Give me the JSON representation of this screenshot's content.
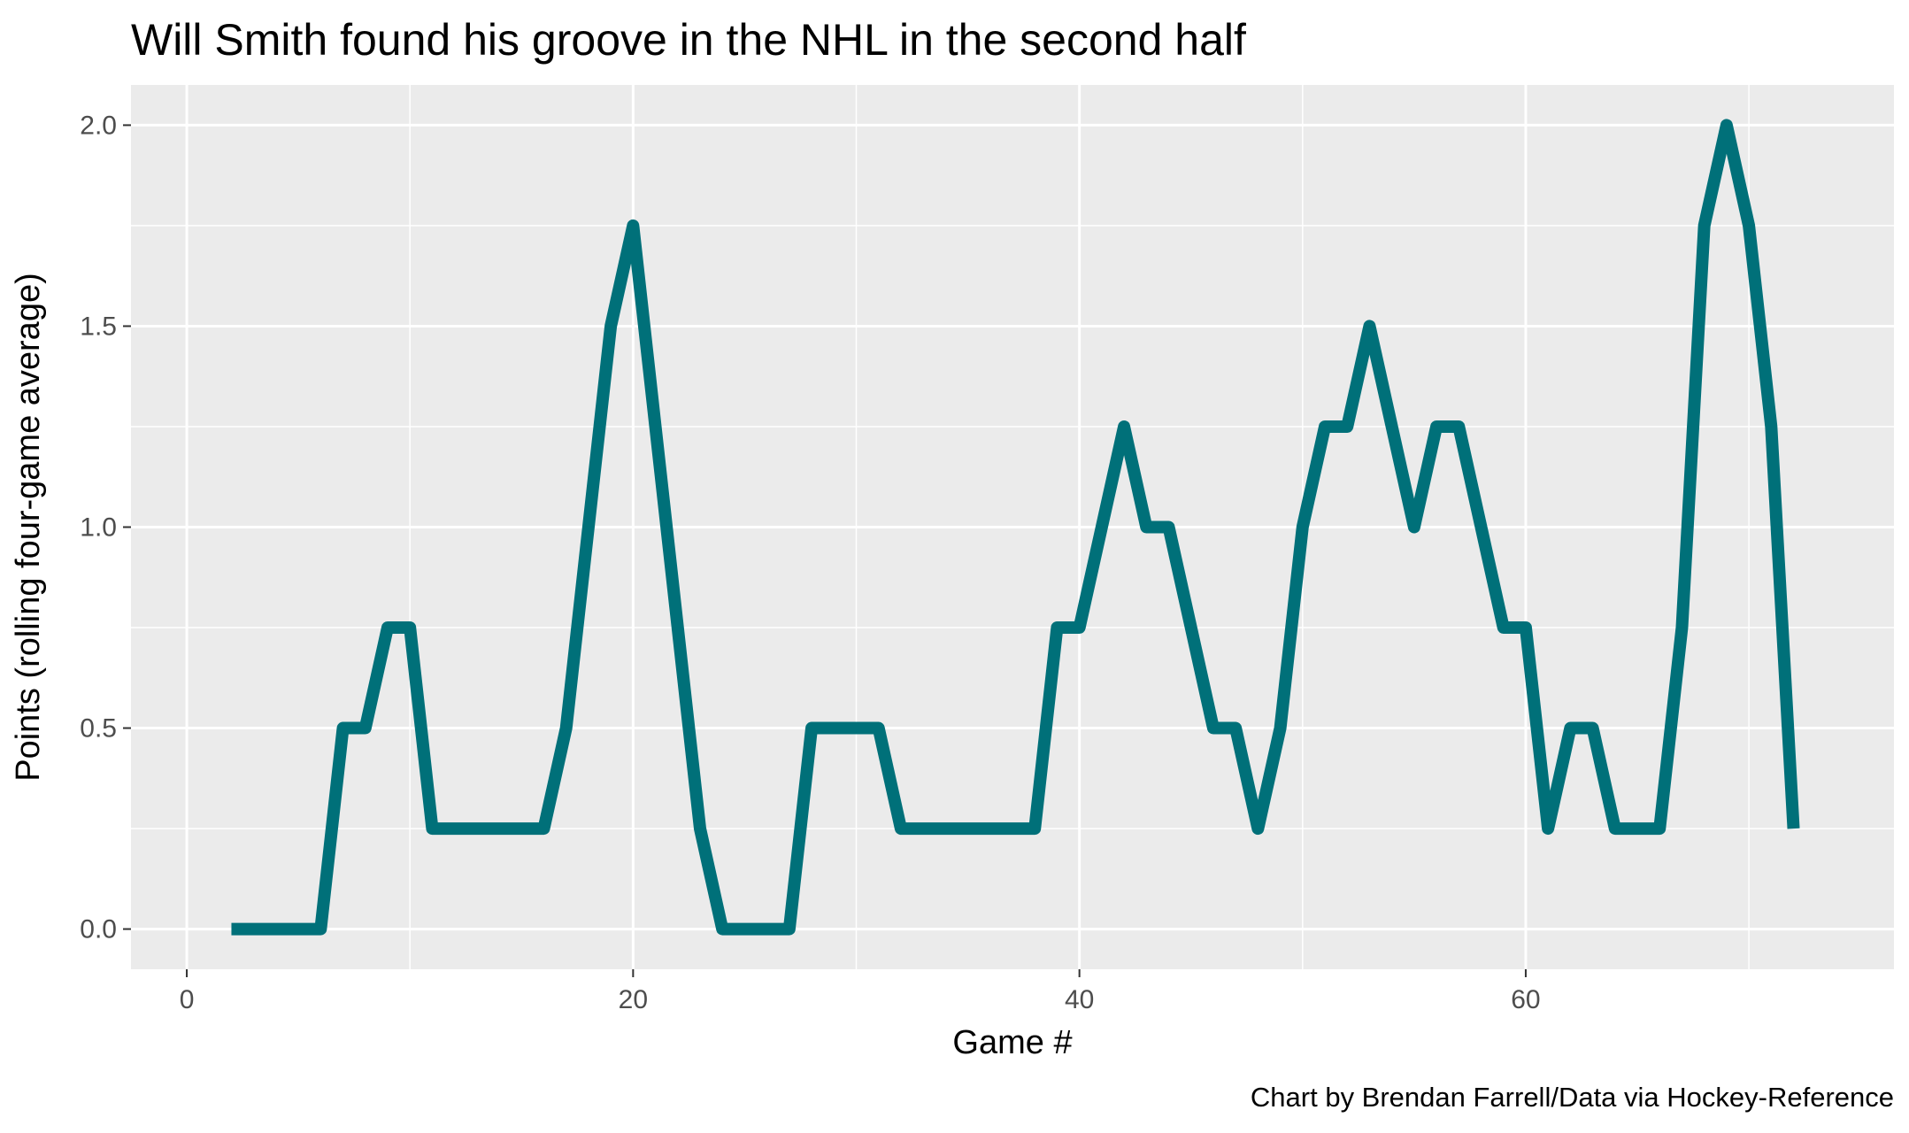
{
  "chart_data": {
    "type": "line",
    "title": "Will Smith found his groove in the NHL in the second half",
    "xlabel": "Game #",
    "ylabel": "Points (rolling four-game average)",
    "caption": "Chart by Brendan Farrell/Data via Hockey-Reference",
    "xlim": [
      -2.5,
      76.5
    ],
    "ylim": [
      -0.1,
      2.1
    ],
    "x_ticks": [
      0,
      20,
      40,
      60
    ],
    "y_ticks": [
      0.0,
      0.5,
      1.0,
      1.5,
      2.0
    ],
    "x_tick_labels": [
      "0",
      "20",
      "40",
      "60"
    ],
    "y_tick_labels": [
      "0.0",
      "0.5",
      "1.0",
      "1.5",
      "2.0"
    ],
    "grid": true,
    "series": [
      {
        "color": "#007079",
        "x": [
          2,
          3,
          4,
          5,
          6,
          7,
          8,
          9,
          10,
          11,
          12,
          13,
          14,
          15,
          16,
          17,
          18,
          19,
          20,
          21,
          22,
          23,
          24,
          25,
          26,
          27,
          28,
          29,
          30,
          31,
          32,
          33,
          34,
          35,
          36,
          37,
          38,
          39,
          40,
          41,
          42,
          43,
          44,
          45,
          46,
          47,
          48,
          49,
          50,
          51,
          52,
          53,
          54,
          55,
          56,
          57,
          58,
          59,
          60,
          61,
          62,
          63,
          64,
          65,
          66,
          67,
          68,
          69,
          70,
          71,
          72
        ],
        "y": [
          0,
          0,
          0,
          0,
          0,
          0.5,
          0.5,
          0.75,
          0.75,
          0.25,
          0.25,
          0.25,
          0.25,
          0.25,
          0.25,
          0.5,
          1.0,
          1.5,
          1.75,
          1.25,
          0.75,
          0.25,
          0,
          0,
          0,
          0,
          0.5,
          0.5,
          0.5,
          0.5,
          0.25,
          0.25,
          0.25,
          0.25,
          0.25,
          0.25,
          0.25,
          0.75,
          0.75,
          1.0,
          1.25,
          1.0,
          1.0,
          0.75,
          0.5,
          0.5,
          0.25,
          0.5,
          1.0,
          1.25,
          1.25,
          1.5,
          1.25,
          1.0,
          1.25,
          1.25,
          1.0,
          0.75,
          0.75,
          0.25,
          0.5,
          0.5,
          0.25,
          0.25,
          0.25,
          0.75,
          1.75,
          2.0,
          1.75,
          1.25,
          0.25
        ]
      }
    ]
  },
  "colors": {
    "panel_background": "#ebebeb",
    "grid": "#ffffff",
    "line": "#007079"
  }
}
